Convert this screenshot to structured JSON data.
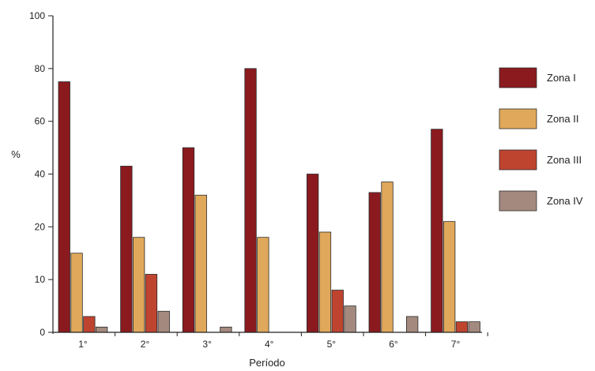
{
  "chart_data": {
    "type": "bar",
    "categories": [
      "1°",
      "2°",
      "3°",
      "4°",
      "5°",
      "6°",
      "7°"
    ],
    "series": [
      {
        "name": "Zona I",
        "color": "#8b1a1f",
        "values": [
          75,
          43,
          50,
          80,
          40,
          33,
          57
        ]
      },
      {
        "name": "Zona II",
        "color": "#e0a85a",
        "values": [
          15,
          18,
          32,
          18,
          19,
          37,
          22
        ]
      },
      {
        "name": "Zona III",
        "color": "#bf4430",
        "values": [
          3,
          11,
          0,
          0,
          8,
          0,
          2
        ]
      },
      {
        "name": "Zona IV",
        "color": "#a48a7e",
        "values": [
          1,
          4,
          1,
          0,
          5,
          3,
          2
        ]
      }
    ],
    "xlabel": "Período",
    "ylabel": "%",
    "ylim": [
      0,
      100
    ],
    "yticks": [
      0,
      10,
      20,
      40,
      60,
      80,
      100
    ],
    "ytick_labels": [
      "0",
      "10",
      "20",
      "40",
      "60",
      "80",
      "100"
    ],
    "y_scale_note": "non-linear: ticks 0,10,20,40,60,80,100 are evenly spaced",
    "grid": false,
    "legend": "right"
  }
}
